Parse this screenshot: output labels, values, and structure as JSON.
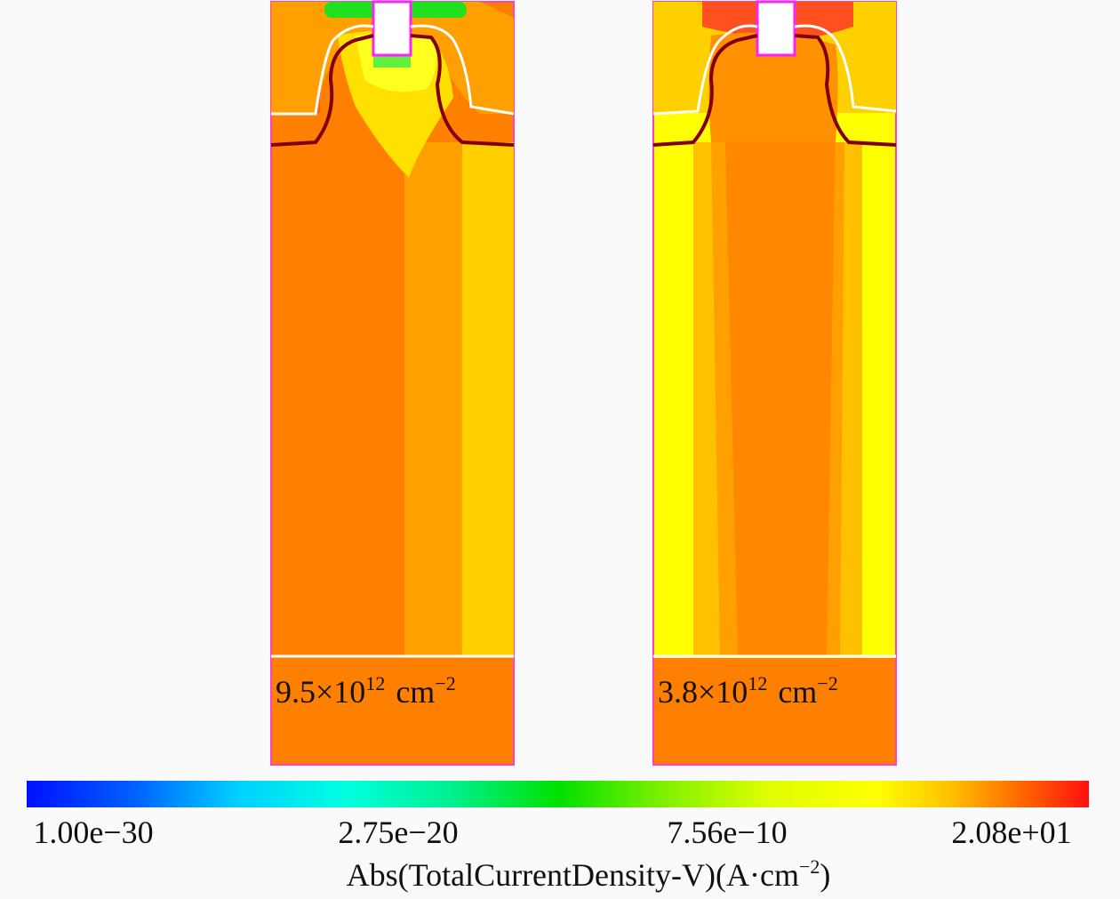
{
  "panels": [
    {
      "label": "9.5×10",
      "exponent": "12",
      "unit": "cm",
      "unit_exponent": "−2"
    },
    {
      "label": "3.8×10",
      "exponent": "12",
      "unit": "cm",
      "unit_exponent": "−2"
    }
  ],
  "colorbar": {
    "tick_labels": [
      "1.00e−30",
      "2.75e−20",
      "7.56e−10",
      "2.08e+01"
    ],
    "title": "Abs(TotalCurrentDensity-V)(A·cm",
    "title_exponent": "−2",
    "title_end": ")"
  }
}
